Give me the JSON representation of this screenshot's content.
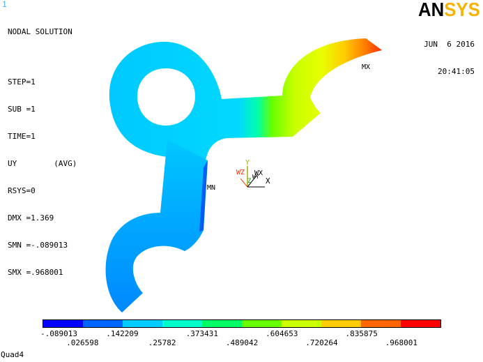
{
  "window_number": "1",
  "info": {
    "title": "NODAL SOLUTION",
    "step": "STEP=1",
    "sub": "SUB =1",
    "time": "TIME=1",
    "result": "UY        (AVG)",
    "rsys": "RSYS=0",
    "dmx": "DMX =1.369",
    "smn": "SMN =-.089013",
    "smx": "SMX =.968001"
  },
  "logo": {
    "part1": "AN",
    "part2": "SYS"
  },
  "date": "JUN  6 2016",
  "time_of_day": "20:41:05",
  "markers": {
    "max": "MX",
    "min": "MN"
  },
  "triad": {
    "y": "Y",
    "x": "X",
    "z": "Z",
    "wz": "WZ",
    "wx": "WX",
    "wy": "WY"
  },
  "legend": {
    "colors": [
      "#0000ff",
      "#0066ff",
      "#00ccff",
      "#00ffcc",
      "#00ff66",
      "#66ff00",
      "#ccff00",
      "#ffcc00",
      "#ff6600",
      "#ff0000"
    ],
    "labels_top": [
      "-.089013",
      ".142209",
      ".373431",
      ".604653",
      ".835875"
    ],
    "labels_bottom": [
      ".026598",
      ".25782",
      ".489042",
      ".720264",
      ".968001"
    ]
  },
  "status": "Quad4"
}
